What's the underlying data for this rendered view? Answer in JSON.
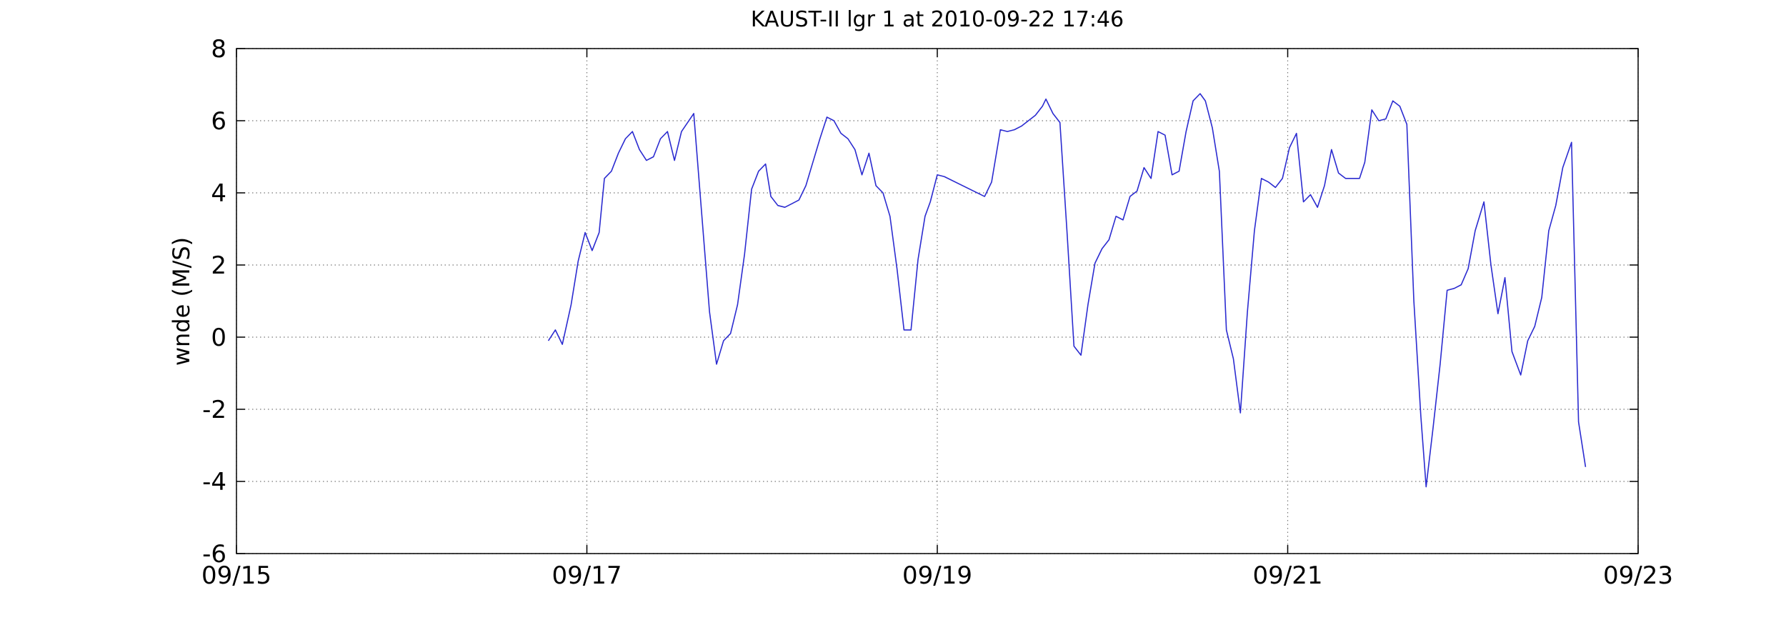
{
  "chart_data": {
    "type": "line",
    "title": "KAUST-II lgr 1 at 2010-09-22 17:46",
    "y_label": "wnde (M/S)",
    "xlim": [
      15,
      23
    ],
    "xticks": [
      {
        "value": 15,
        "label": "09/15"
      },
      {
        "value": 17,
        "label": "09/17"
      },
      {
        "value": 19,
        "label": "09/19"
      },
      {
        "value": 21,
        "label": "09/21"
      },
      {
        "value": 23,
        "label": "09/23"
      }
    ],
    "ylim": [
      -6,
      8
    ],
    "yticks": [
      -6,
      -4,
      -2,
      0,
      2,
      4,
      6,
      8
    ],
    "grid": true,
    "series": [
      {
        "color": "#2b2bd0",
        "x": [
          16.78,
          16.82,
          16.86,
          16.91,
          16.95,
          16.99,
          17.03,
          17.07,
          17.1,
          17.14,
          17.18,
          17.22,
          17.26,
          17.3,
          17.34,
          17.38,
          17.42,
          17.46,
          17.5,
          17.54,
          17.61,
          17.65,
          17.7,
          17.74,
          17.78,
          17.82,
          17.86,
          17.9,
          17.94,
          17.98,
          18.02,
          18.05,
          18.09,
          18.13,
          18.17,
          18.21,
          18.25,
          18.29,
          18.33,
          18.37,
          18.41,
          18.45,
          18.49,
          18.53,
          18.57,
          18.61,
          18.65,
          18.69,
          18.73,
          18.77,
          18.81,
          18.85,
          18.89,
          18.93,
          18.96,
          19.0,
          19.04,
          19.27,
          19.31,
          19.36,
          19.4,
          19.44,
          19.48,
          19.52,
          19.56,
          19.6,
          19.62,
          19.66,
          19.7,
          19.74,
          19.78,
          19.82,
          19.86,
          19.9,
          19.94,
          19.98,
          20.02,
          20.06,
          20.1,
          20.14,
          20.18,
          20.22,
          20.26,
          20.3,
          20.34,
          20.38,
          20.42,
          20.46,
          20.5,
          20.53,
          20.57,
          20.61,
          20.65,
          20.69,
          20.73,
          20.77,
          20.81,
          20.85,
          20.89,
          20.93,
          20.97,
          21.01,
          21.05,
          21.09,
          21.13,
          21.17,
          21.21,
          21.25,
          21.29,
          21.33,
          21.37,
          21.41,
          21.44,
          21.48,
          21.52,
          21.56,
          21.6,
          21.64,
          21.68,
          21.72,
          21.76,
          21.79,
          21.83,
          21.87,
          21.91,
          21.95,
          21.99,
          22.03,
          22.07,
          22.12,
          22.16,
          22.2,
          22.24,
          22.28,
          22.33,
          22.37,
          22.41,
          22.45,
          22.49,
          22.53,
          22.57,
          22.62,
          22.66,
          22.7
        ],
        "values": [
          -0.1,
          0.2,
          -0.2,
          0.9,
          2.1,
          2.9,
          2.4,
          2.9,
          4.4,
          4.6,
          5.1,
          5.5,
          5.7,
          5.2,
          4.9,
          5.0,
          5.5,
          5.7,
          4.9,
          5.7,
          6.2,
          3.75,
          0.7,
          -0.75,
          -0.1,
          0.1,
          0.9,
          2.3,
          4.1,
          4.6,
          4.8,
          3.9,
          3.65,
          3.6,
          3.7,
          3.8,
          4.2,
          4.85,
          5.5,
          6.1,
          6.0,
          5.65,
          5.5,
          5.2,
          4.5,
          5.1,
          4.2,
          4.0,
          3.35,
          1.9,
          0.2,
          0.2,
          2.15,
          3.35,
          3.75,
          4.5,
          4.45,
          3.9,
          4.3,
          5.75,
          5.7,
          5.75,
          5.85,
          6.0,
          6.15,
          6.4,
          6.6,
          6.2,
          5.95,
          2.95,
          -0.25,
          -0.5,
          0.9,
          2.05,
          2.45,
          2.7,
          3.35,
          3.25,
          3.9,
          4.05,
          4.7,
          4.4,
          5.7,
          5.6,
          4.5,
          4.6,
          5.7,
          6.55,
          6.75,
          6.55,
          5.8,
          4.6,
          0.2,
          -0.6,
          -2.1,
          0.7,
          2.95,
          4.4,
          4.3,
          4.15,
          4.4,
          5.25,
          5.65,
          3.75,
          3.95,
          3.6,
          4.2,
          5.2,
          4.55,
          4.4,
          4.4,
          4.4,
          4.85,
          6.3,
          6.0,
          6.05,
          6.55,
          6.4,
          5.9,
          1.0,
          -2.2,
          -4.15,
          -2.5,
          -0.75,
          1.3,
          1.35,
          1.45,
          1.9,
          2.95,
          3.75,
          2.0,
          0.65,
          1.65,
          -0.4,
          -1.05,
          -0.1,
          0.3,
          1.1,
          2.95,
          3.65,
          4.7,
          5.4,
          -2.35,
          -3.6
        ]
      }
    ]
  }
}
